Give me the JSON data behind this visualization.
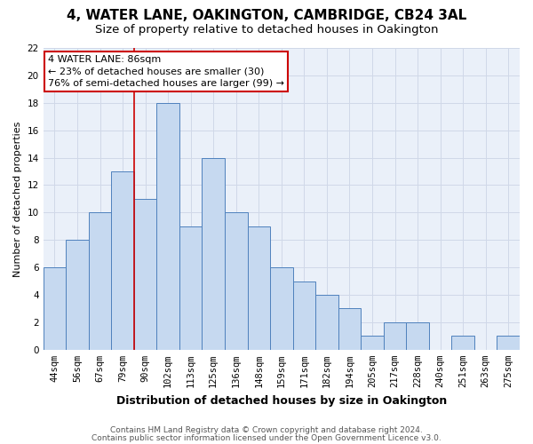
{
  "title1": "4, WATER LANE, OAKINGTON, CAMBRIDGE, CB24 3AL",
  "title2": "Size of property relative to detached houses in Oakington",
  "xlabel": "Distribution of detached houses by size in Oakington",
  "ylabel": "Number of detached properties",
  "categories": [
    "44sqm",
    "56sqm",
    "67sqm",
    "79sqm",
    "90sqm",
    "102sqm",
    "113sqm",
    "125sqm",
    "136sqm",
    "148sqm",
    "159sqm",
    "171sqm",
    "182sqm",
    "194sqm",
    "205sqm",
    "217sqm",
    "228sqm",
    "240sqm",
    "251sqm",
    "263sqm",
    "275sqm"
  ],
  "values": [
    6,
    8,
    10,
    13,
    11,
    18,
    9,
    14,
    10,
    9,
    6,
    5,
    4,
    3,
    1,
    2,
    2,
    0,
    1,
    0,
    1
  ],
  "bar_color": "#c6d9f0",
  "bar_edge_color": "#4f81bd",
  "grid_color": "#d0d8e8",
  "background_color": "#eaf0f9",
  "vline_color": "#cc0000",
  "vline_pos": 3.5,
  "annotation_text": "4 WATER LANE: 86sqm\n← 23% of detached houses are smaller (30)\n76% of semi-detached houses are larger (99) →",
  "annotation_box_color": "#ffffff",
  "annotation_box_edge": "#cc0000",
  "ylim": [
    0,
    22
  ],
  "yticks": [
    0,
    2,
    4,
    6,
    8,
    10,
    12,
    14,
    16,
    18,
    20,
    22
  ],
  "footer1": "Contains HM Land Registry data © Crown copyright and database right 2024.",
  "footer2": "Contains public sector information licensed under the Open Government Licence v3.0.",
  "title1_fontsize": 11,
  "title2_fontsize": 9.5,
  "xlabel_fontsize": 9,
  "ylabel_fontsize": 8,
  "tick_fontsize": 7.5,
  "annotation_fontsize": 8,
  "footer_fontsize": 6.5
}
